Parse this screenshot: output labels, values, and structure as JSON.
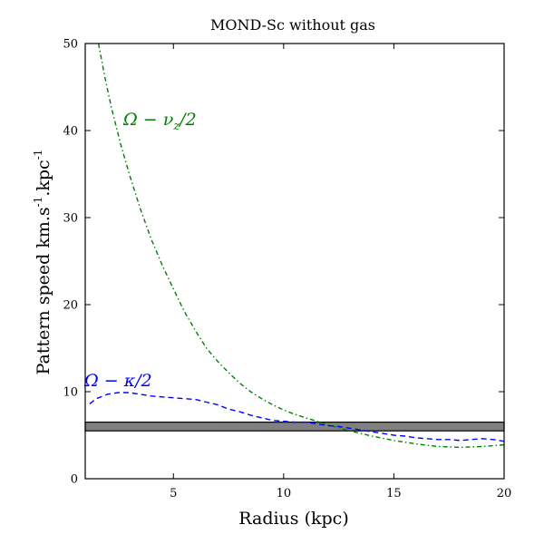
{
  "chart_data": {
    "type": "line",
    "title": "MOND-Sc without gas",
    "xlabel": "Radius (kpc)",
    "ylabel": "Pattern speed km.s",
    "ylabel_unit2": ".kpc",
    "ylabel_exp": "-1",
    "xlim": [
      1,
      20
    ],
    "ylim": [
      0,
      50
    ],
    "xticks": [
      5,
      10,
      15,
      20
    ],
    "yticks": [
      0,
      10,
      20,
      30,
      40,
      50
    ],
    "grid": false,
    "band": {
      "y0": 5.5,
      "y1": 6.5,
      "color": "#808080"
    },
    "series": [
      {
        "name": "Ω − ν_z/2",
        "label_main": "Ω − ν",
        "label_sub": "z",
        "label_tail": "/2",
        "color": "#008000",
        "style": "dashdot",
        "x": [
          1.6,
          1.9,
          2.2,
          2.6,
          3.0,
          3.5,
          4.0,
          4.5,
          5.0,
          5.5,
          6.0,
          6.5,
          7.0,
          7.5,
          8.0,
          8.5,
          9.0,
          9.5,
          10.0,
          10.5,
          11.0,
          11.5,
          12.0,
          13.0,
          14.0,
          15.0,
          16.0,
          17.0,
          18.0,
          19.0,
          20.0
        ],
        "values": [
          50.0,
          46.0,
          42.5,
          38.5,
          35.0,
          31.0,
          27.5,
          24.5,
          21.8,
          19.2,
          17.0,
          15.0,
          13.5,
          12.2,
          11.0,
          10.0,
          9.2,
          8.5,
          7.9,
          7.4,
          7.0,
          6.6,
          6.2,
          5.5,
          4.9,
          4.4,
          4.0,
          3.7,
          3.6,
          3.7,
          3.9
        ]
      },
      {
        "name": "Ω − κ/2",
        "label_main": "Ω − κ/2",
        "color": "#0000ff",
        "style": "dashed",
        "x": [
          1.2,
          1.5,
          2.0,
          2.5,
          3.0,
          3.5,
          4.0,
          4.5,
          5.0,
          5.5,
          6.0,
          6.5,
          7.0,
          7.5,
          8.0,
          8.5,
          9.0,
          9.5,
          10.0,
          10.5,
          11.0,
          11.5,
          12.0,
          12.5,
          13.0,
          13.5,
          14.0,
          14.5,
          15.0,
          15.5,
          16.0,
          16.5,
          17.0,
          17.5,
          18.0,
          18.5,
          19.0,
          19.5,
          20.0
        ],
        "values": [
          8.6,
          9.2,
          9.7,
          9.9,
          9.9,
          9.7,
          9.5,
          9.4,
          9.3,
          9.2,
          9.1,
          8.8,
          8.5,
          8.0,
          7.7,
          7.3,
          7.0,
          6.7,
          6.6,
          6.5,
          6.5,
          6.3,
          6.1,
          6.0,
          5.8,
          5.6,
          5.4,
          5.2,
          5.0,
          4.9,
          4.7,
          4.6,
          4.5,
          4.5,
          4.4,
          4.5,
          4.6,
          4.5,
          4.3
        ]
      }
    ]
  }
}
